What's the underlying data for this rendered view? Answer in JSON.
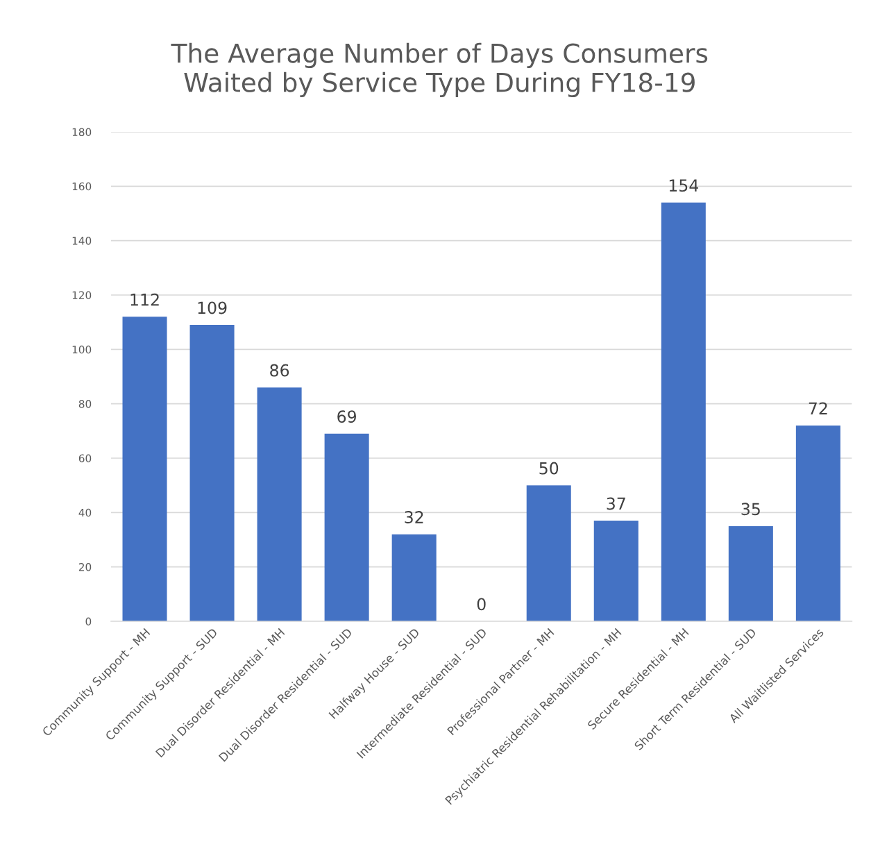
{
  "chart_data": {
    "type": "bar",
    "title": "The Average Number of Days Consumers\nWaited by Service Type During FY18-19",
    "categories": [
      "Community Support - MH",
      "Community Support - SUD",
      "Dual Disorder Residential - MH",
      "Dual Disorder Residential - SUD",
      "Halfway House - SUD",
      "Intermediate Residential - SUD",
      "Professional Partner - MH",
      "Psychiatric Residential Rehabilitation - MH",
      "Secure Residential - MH",
      "Short Term Residential - SUD",
      "All Waitlisted Services"
    ],
    "values": [
      112,
      109,
      86,
      69,
      32,
      0,
      50,
      37,
      154,
      35,
      72
    ],
    "color": "#4472c4",
    "data_labels": true,
    "grid": "y",
    "ylim": [
      0,
      180
    ],
    "yticks": [
      0,
      20,
      40,
      60,
      80,
      100,
      120,
      140,
      160,
      180
    ]
  }
}
